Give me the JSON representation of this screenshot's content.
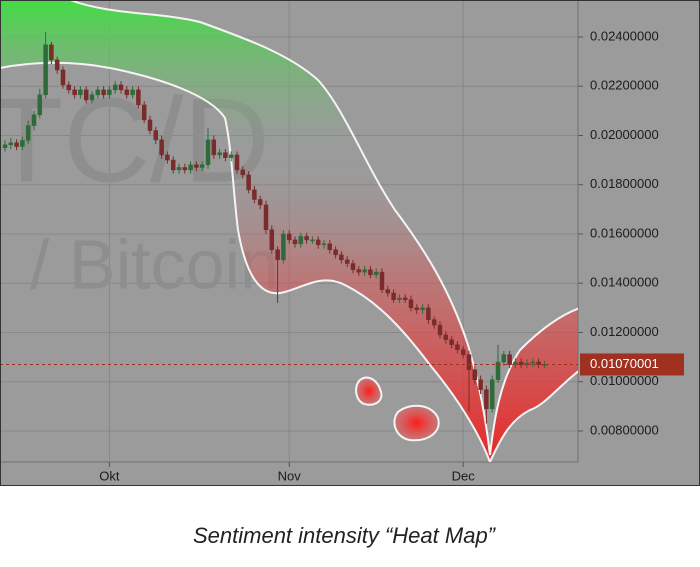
{
  "chart_data": {
    "type": "candlestick",
    "categories": [
      null,
      null,
      null,
      null,
      null,
      null,
      null,
      null,
      null,
      null,
      null,
      null,
      null,
      null,
      null,
      null,
      null,
      null,
      "Okt",
      null,
      null,
      null,
      null,
      null,
      null,
      null,
      null,
      null,
      null,
      null,
      null,
      null,
      null,
      null,
      null,
      null,
      null,
      null,
      null,
      null,
      null,
      null,
      null,
      null,
      null,
      null,
      null,
      null,
      null,
      "Nov",
      null,
      null,
      null,
      null,
      null,
      null,
      null,
      null,
      null,
      null,
      null,
      null,
      null,
      null,
      null,
      null,
      null,
      null,
      null,
      null,
      null,
      null,
      null,
      null,
      null,
      null,
      null,
      null,
      null,
      "Dec",
      null,
      null,
      null,
      null,
      null,
      null,
      null,
      null,
      null,
      null,
      null,
      null,
      null,
      null
    ],
    "open": [
      0.0195,
      0.01962,
      0.0197,
      0.01955,
      0.0198,
      0.0204,
      0.02084,
      0.02165,
      0.02368,
      0.02307,
      0.02266,
      0.02205,
      0.02185,
      0.02165,
      0.02185,
      0.02144,
      0.02165,
      0.02185,
      0.02165,
      0.02185,
      0.02205,
      0.02185,
      0.02165,
      0.02185,
      0.02124,
      0.02063,
      0.0202,
      0.01982,
      0.01921,
      0.019,
      0.0186,
      0.0187,
      0.0186,
      0.01881,
      0.0187,
      0.01881,
      0.01982,
      0.01921,
      0.0193,
      0.0191,
      0.01921,
      0.0186,
      0.0184,
      0.01779,
      0.0174,
      0.01718,
      0.01617,
      0.01536,
      0.01495,
      0.016,
      0.01576,
      0.0156,
      0.0159,
      0.01576,
      0.01576,
      0.01556,
      0.0156,
      0.01536,
      0.01515,
      0.01495,
      0.0148,
      0.01455,
      0.01445,
      0.01455,
      0.01434,
      0.01445,
      0.01374,
      0.0136,
      0.01333,
      0.0134,
      0.01333,
      0.013,
      0.01292,
      0.013,
      0.01252,
      0.0123,
      0.0119,
      0.01171,
      0.0115,
      0.0113,
      0.0111,
      0.01049,
      0.01008,
      0.00968,
      0.0089,
      0.01008,
      0.0108,
      0.0111,
      0.01069,
      0.0108,
      0.01069,
      0.01075,
      0.0108,
      0.0107
    ],
    "high": [
      0.0198,
      0.0199,
      0.01985,
      0.01995,
      0.0206,
      0.021,
      0.0219,
      0.0242,
      0.0238,
      0.0232,
      0.0228,
      0.0222,
      0.022,
      0.022,
      0.022,
      0.0218,
      0.022,
      0.022,
      0.022,
      0.0222,
      0.0222,
      0.022,
      0.022,
      0.022,
      0.0214,
      0.0208,
      0.02035,
      0.02,
      0.01935,
      0.01915,
      0.01885,
      0.01885,
      0.01895,
      0.01895,
      0.01895,
      0.0203,
      0.02,
      0.01945,
      0.01945,
      0.01935,
      0.01935,
      0.01875,
      0.01855,
      0.01795,
      0.01755,
      0.01735,
      0.01635,
      0.0155,
      0.01615,
      0.01615,
      0.0159,
      0.01605,
      0.01605,
      0.0159,
      0.0159,
      0.01575,
      0.01575,
      0.0155,
      0.0153,
      0.0151,
      0.01495,
      0.0147,
      0.0147,
      0.0147,
      0.0146,
      0.0146,
      0.0139,
      0.01375,
      0.01355,
      0.01355,
      0.0135,
      0.01315,
      0.01315,
      0.01315,
      0.01265,
      0.01245,
      0.01205,
      0.01185,
      0.01165,
      0.01145,
      0.01125,
      0.01065,
      0.01025,
      0.00985,
      0.01025,
      0.0115,
      0.01125,
      0.01125,
      0.01095,
      0.01095,
      0.0109,
      0.01095,
      0.01095,
      0.01085
    ],
    "low": [
      0.01935,
      0.01945,
      0.0194,
      0.0194,
      0.01965,
      0.0202,
      0.0207,
      0.0215,
      0.0229,
      0.0225,
      0.0219,
      0.0217,
      0.0215,
      0.0215,
      0.0213,
      0.0213,
      0.0215,
      0.0215,
      0.0215,
      0.0217,
      0.0217,
      0.0215,
      0.0215,
      0.0211,
      0.0205,
      0.02005,
      0.01965,
      0.01905,
      0.01885,
      0.01845,
      0.01845,
      0.01845,
      0.01845,
      0.01855,
      0.01855,
      0.01865,
      0.01905,
      0.01905,
      0.01895,
      0.01895,
      0.01845,
      0.01825,
      0.01765,
      0.01725,
      0.017,
      0.016,
      0.0152,
      0.0132,
      0.0148,
      0.0156,
      0.01545,
      0.01545,
      0.0156,
      0.0156,
      0.0154,
      0.0154,
      0.0152,
      0.015,
      0.0148,
      0.01465,
      0.0144,
      0.0143,
      0.0143,
      0.0142,
      0.0142,
      0.0136,
      0.01345,
      0.0132,
      0.0132,
      0.0132,
      0.01285,
      0.01275,
      0.01275,
      0.01235,
      0.01215,
      0.01175,
      0.01155,
      0.01135,
      0.01115,
      0.01095,
      0.0088,
      0.0099,
      0.0095,
      0.0083,
      0.00875,
      0.00995,
      0.01065,
      0.01055,
      0.01055,
      0.01055,
      0.01055,
      0.0106,
      0.01055,
      0.01055
    ],
    "close": [
      0.01962,
      0.0197,
      0.01955,
      0.0198,
      0.0204,
      0.02084,
      0.02165,
      0.02368,
      0.02307,
      0.02266,
      0.02205,
      0.02185,
      0.02165,
      0.02185,
      0.02144,
      0.02165,
      0.02185,
      0.02165,
      0.02185,
      0.02205,
      0.02185,
      0.02165,
      0.02185,
      0.02124,
      0.02063,
      0.0202,
      0.01982,
      0.01921,
      0.019,
      0.0186,
      0.0187,
      0.0186,
      0.01881,
      0.0187,
      0.01881,
      0.01982,
      0.01921,
      0.0193,
      0.0191,
      0.01921,
      0.0186,
      0.0184,
      0.01779,
      0.0174,
      0.01718,
      0.01617,
      0.01536,
      0.01495,
      0.016,
      0.01576,
      0.0156,
      0.0159,
      0.01576,
      0.01576,
      0.01556,
      0.0156,
      0.01536,
      0.01515,
      0.01495,
      0.0148,
      0.01455,
      0.01445,
      0.01455,
      0.01434,
      0.01445,
      0.01374,
      0.0136,
      0.01333,
      0.0134,
      0.01333,
      0.013,
      0.01292,
      0.013,
      0.01252,
      0.0123,
      0.0119,
      0.01171,
      0.0115,
      0.0113,
      0.0111,
      0.01049,
      0.01008,
      0.00968,
      0.0089,
      0.01008,
      0.0108,
      0.0111,
      0.01069,
      0.0108,
      0.01069,
      0.01075,
      0.0108,
      0.0107,
      0.0107
    ],
    "up_color": "#2f6b3a",
    "down_color": "#7a2b2b",
    "ylim": [
      0.00674,
      0.0255
    ],
    "yticks": [
      {
        "value": 0.008,
        "label": "0.00800000"
      },
      {
        "value": 0.01,
        "label": "0.01000000"
      },
      {
        "value": 0.012,
        "label": "0.01200000"
      },
      {
        "value": 0.014,
        "label": "0.01400000"
      },
      {
        "value": 0.016,
        "label": "0.01600000"
      },
      {
        "value": 0.018,
        "label": "0.01800000"
      },
      {
        "value": 0.02,
        "label": "0.02000000"
      },
      {
        "value": 0.022,
        "label": "0.02200000"
      },
      {
        "value": 0.024,
        "label": "0.02400000"
      }
    ],
    "grid": true,
    "last_price": {
      "value": 0.01070001,
      "label": "0.01070001"
    },
    "last_price_color": "#a0301f",
    "watermark": [
      "TC/D",
      "/ Bitcoin"
    ],
    "caption": "Sentiment intensity “Heat Map”"
  }
}
